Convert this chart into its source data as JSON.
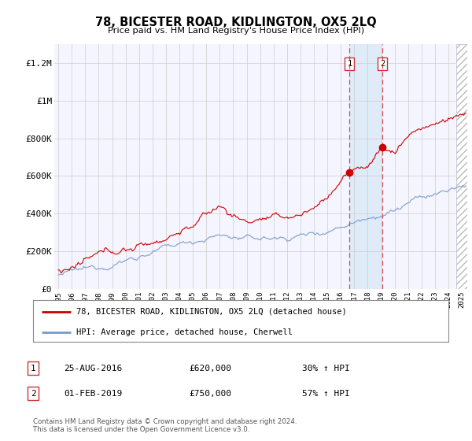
{
  "title": "78, BICESTER ROAD, KIDLINGTON, OX5 2LQ",
  "subtitle": "Price paid vs. HM Land Registry's House Price Index (HPI)",
  "legend_line1": "78, BICESTER ROAD, KIDLINGTON, OX5 2LQ (detached house)",
  "legend_line2": "HPI: Average price, detached house, Cherwell",
  "annotation1_date": "25-AUG-2016",
  "annotation1_price": "£620,000",
  "annotation1_hpi": "30% ↑ HPI",
  "annotation2_date": "01-FEB-2019",
  "annotation2_price": "£750,000",
  "annotation2_hpi": "57% ↑ HPI",
  "footer": "Contains HM Land Registry data © Crown copyright and database right 2024.\nThis data is licensed under the Open Government Licence v3.0.",
  "sale1_year": 2016.65,
  "sale1_value": 620000,
  "sale2_year": 2019.08,
  "sale2_value": 750000,
  "red_color": "#cc0000",
  "blue_color": "#7799cc",
  "background_color": "#ffffff",
  "grid_color": "#cccccc",
  "plot_bg": "#f5f5ff",
  "shade_color": "#d8e8f8",
  "ylim": [
    0,
    1300000
  ],
  "xlim_start": 1994.7,
  "xlim_end": 2025.4,
  "hatch_start": 2024.6
}
